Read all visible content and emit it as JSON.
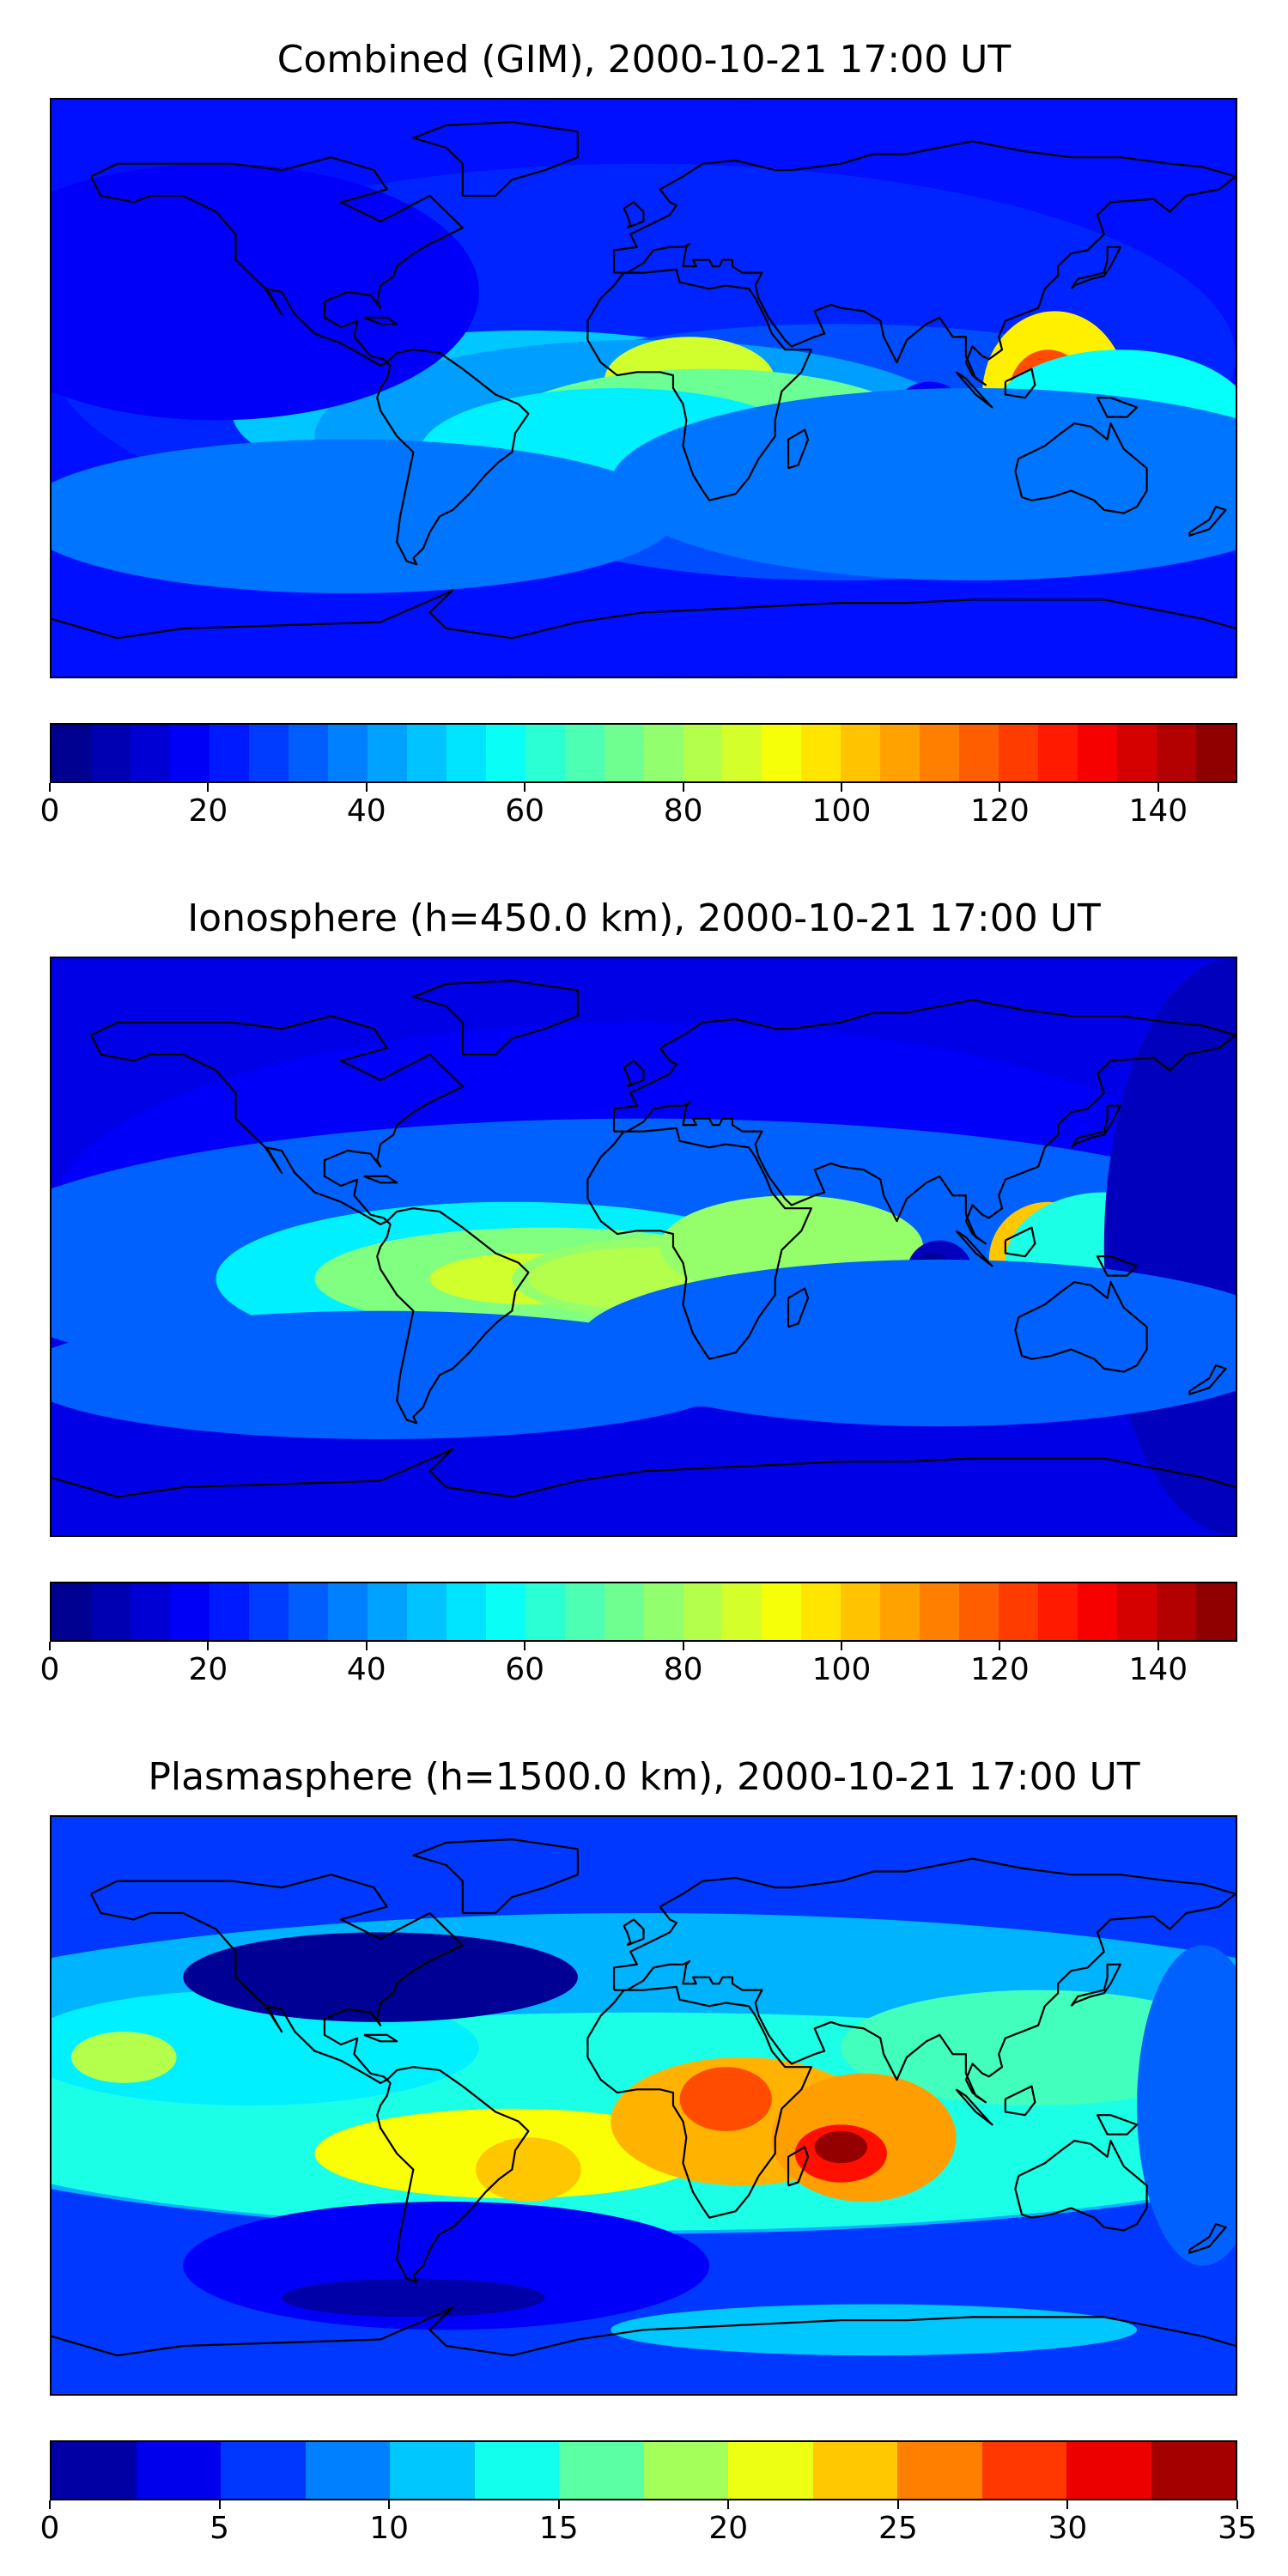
{
  "figure": {
    "panels": [
      {
        "title": "Combined (GIM), 2000-10-21 17:00 UT",
        "quantity": "combined",
        "colorbar": {
          "min": 0,
          "max": 150,
          "levels": 30,
          "tick_labels": [
            "0",
            "20",
            "40",
            "60",
            "80",
            "100",
            "120",
            "140"
          ]
        }
      },
      {
        "title": "Ionosphere  (h=450.0 km), 2000-10-21 17:00 UT",
        "quantity": "ionosphere",
        "colorbar": {
          "min": 0,
          "max": 150,
          "levels": 30,
          "tick_labels": [
            "0",
            "20",
            "40",
            "60",
            "80",
            "100",
            "120",
            "140"
          ]
        }
      },
      {
        "title": "Plasmasphere (h=1500.0 km), 2000-10-21 17:00 UT",
        "quantity": "plasmasphere",
        "colorbar": {
          "min": 0,
          "max": 35,
          "levels": 14,
          "tick_labels": [
            "0",
            "5",
            "10",
            "15",
            "20",
            "25",
            "30",
            "35"
          ]
        }
      }
    ],
    "colormap": "jet",
    "coastline_color": "#000000"
  }
}
